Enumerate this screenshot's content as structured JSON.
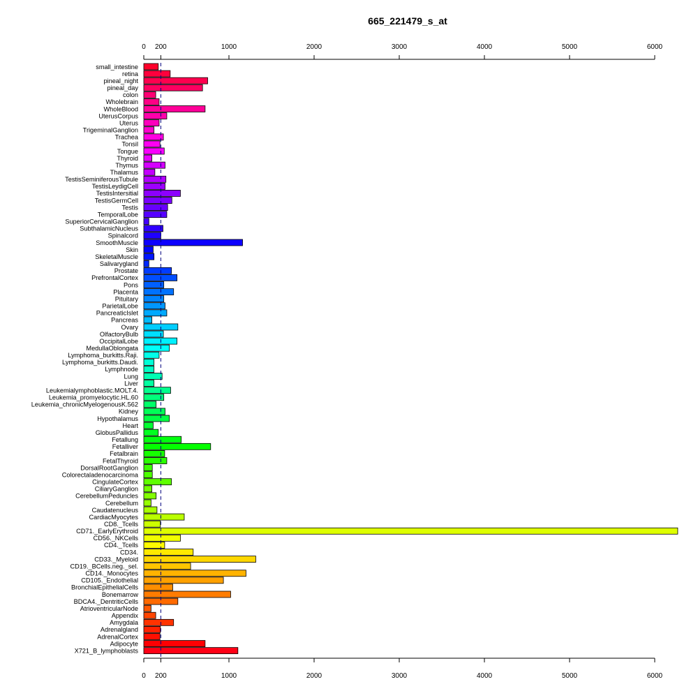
{
  "chart_data": {
    "type": "bar",
    "orientation": "horizontal",
    "title": "665_221479_s_at",
    "xlabel": "",
    "ylabel": "",
    "xlim": [
      0,
      6000
    ],
    "x_ticks": [
      0,
      200,
      1000,
      2000,
      3000,
      4000,
      5000,
      6000
    ],
    "reference_line": 200,
    "grid": false,
    "legend": "none",
    "categories": [
      "small_intestine",
      "retina",
      "pineal_night",
      "pineal_day",
      "colon",
      "Wholebrain",
      "WholeBlood",
      "UterusCorpus",
      "Uterus",
      "TrigeminalGanglion",
      "Trachea",
      "Tonsil",
      "Tongue",
      "Thyroid",
      "Thymus",
      "Thalamus",
      "TestisSeminiferousTubule",
      "TestisLeydigCell",
      "TestisIntersitial",
      "TestisGermCell",
      "Testis",
      "TemporalLobe",
      "SuperiorCervicalGanglion",
      "SubthalamicNucleus",
      "Spinalcord",
      "SmoothMuscle",
      "Skin",
      "SkeletalMuscle",
      "Salivarygland",
      "Prostate",
      "PrefrontalCortex",
      "Pons",
      "Placenta",
      "Pituitary",
      "ParietalLobe",
      "PancreaticIslet",
      "Pancreas",
      "Ovary",
      "OlfactoryBulb",
      "OccipitalLobe",
      "MedullaOblongata",
      "Lymphoma_burkitts.Raji.",
      "Lymphoma_burkitts.Daudi.",
      "Lymphnode",
      "Lung",
      "Liver",
      "Leukemialymphoblastic.MOLT.4.",
      "Leukemia_promyelocytic.HL.60",
      "Leukemia_chronicMyelogenousK.562",
      "Kidney",
      "Hypothalamus",
      "Heart",
      "GlobusPallidus",
      "Fetallung",
      "Fetalliver",
      "Fetalbrain",
      "FetalThyroid",
      "DorsalRootGanglion",
      "Colorectaladenocarcinoma",
      "CingulateCortex",
      "CiliaryGanglion",
      "CerebellumPeduncles",
      "Cerebellum",
      "Caudatenucleus",
      "CardiacMyocytes",
      "CD8._Tcells",
      "CD71._EarlyErythroid",
      "CD56._NKCells",
      "CD4._Tcells",
      "CD34.",
      "CD33._Myeloid",
      "CD19._BCells.neg._sel.",
      "CD14._Monocytes",
      "CD105._Endothelial",
      "BronchialEpithelialCells",
      "Bonemarrow",
      "BDCA4._DentriticCells",
      "AtrioventricularNode",
      "Appendix",
      "Amygdala",
      "Adrenalgland",
      "AdrenalCortex",
      "Adipocyte",
      "X721_B_lymphoblasts"
    ],
    "values": [
      170,
      310,
      750,
      690,
      140,
      180,
      720,
      270,
      180,
      120,
      230,
      190,
      240,
      95,
      250,
      130,
      260,
      250,
      430,
      330,
      280,
      270,
      60,
      225,
      200,
      1160,
      110,
      120,
      60,
      325,
      390,
      235,
      350,
      235,
      250,
      270,
      95,
      400,
      230,
      390,
      300,
      180,
      120,
      120,
      215,
      120,
      315,
      235,
      145,
      250,
      300,
      110,
      170,
      440,
      785,
      245,
      270,
      100,
      100,
      325,
      95,
      145,
      85,
      155,
      475,
      195,
      6270,
      430,
      245,
      580,
      1315,
      550,
      1200,
      935,
      340,
      1020,
      400,
      85,
      140,
      350,
      195,
      190,
      720,
      1105
    ]
  }
}
